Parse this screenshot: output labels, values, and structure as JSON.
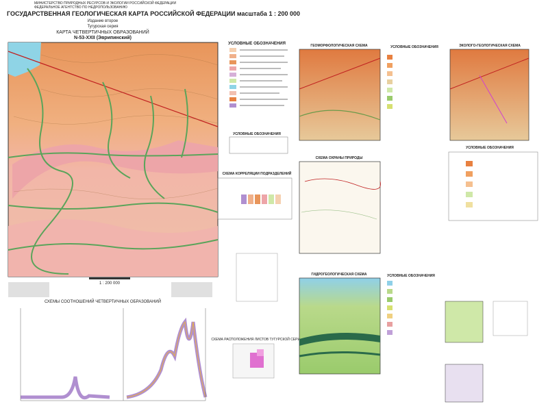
{
  "header": {
    "ministry": "МИНИСТЕРСТВО ПРИРОДНЫХ РЕСУРСОВ И ЭКОЛОГИИ РОССИЙСКОЙ ФЕДЕРАЦИИ",
    "agency": "ФЕДЕРАЛЬНОЕ АГЕНТСТВО ПО НЕДРОПОЛЬЗОВАНИЮ",
    "title": "ГОСУДАРСТВЕННАЯ ГЕОЛОГИЧЕСКАЯ КАРТА РОССИЙСКОЙ ФЕДЕРАЦИИ масштаба 1 : 200 000",
    "edition": "Издание второе",
    "series": "Тугурская серия",
    "map_title": "КАРТА ЧЕТВЕРТИЧНЫХ ОБРАЗОВАНИЙ",
    "sheet": "N-53-XXII (Эврипинский)"
  },
  "main_map": {
    "scale": "1 : 200 000"
  },
  "legend": {
    "title": "УСЛОВНЫЕ ОБОЗНАЧЕНИЯ",
    "relief_title": "УСЛОВНЫЕ ОБОЗНАЧЕНИЯ",
    "correlation_title": "СХЕМА КОРРЕЛЯЦИИ ПОДРАЗДЕЛЕНИЙ"
  },
  "profiles": {
    "title": "СХЕМЫ СООТНОШЕНИЙ ЧЕТВЕРТИЧНЫХ ОБРАЗОВАНИЙ"
  },
  "panels": {
    "geomorph": "ГЕОМОРФОЛОГИЧЕСКАЯ СХЕМА",
    "geomorph_legend": "УСЛОВНЫЕ ОБОЗНАЧЕНИЯ",
    "eco": "ЭКОЛОГО-ГЕОЛОГИЧЕСКАЯ СХЕМА",
    "eco_legend": "УСЛОВНЫЕ ОБОЗНАЧЕНИЯ",
    "nature": "СХЕМА ОХРАНЫ ПРИРОДЫ",
    "hydro": "ГИДРОГЕОЛОГИЧЕСКАЯ СХЕМА",
    "hydro_legend": "УСЛОВНЫЕ ОБОЗНАЧЕНИЯ",
    "location": "СХЕМА РАСПОЛОЖЕНИЯ ЛИСТОВ ТУГУРСКОЙ СЕРИИ"
  }
}
